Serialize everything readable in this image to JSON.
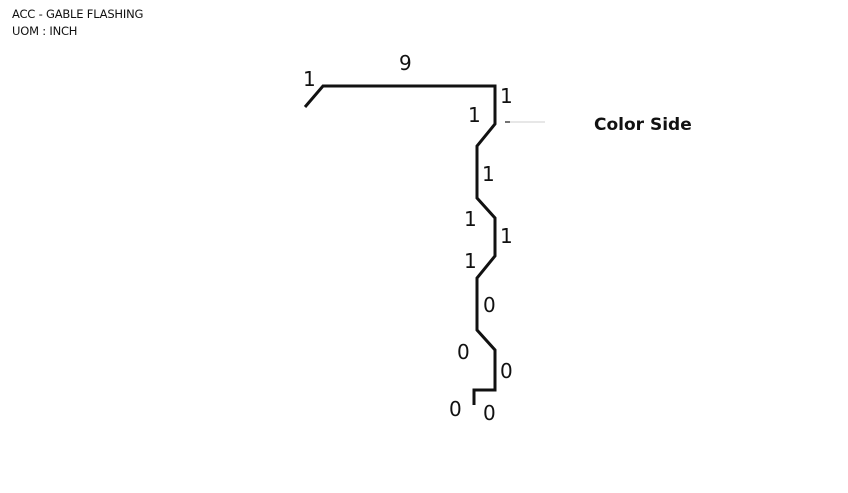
{
  "header": {
    "title": "ACC - GABLE FLASHING",
    "uom": "UOM : INCH"
  },
  "diagram": {
    "color_side_label": "Color Side",
    "segment_labels": {
      "hook": "1",
      "top": "9",
      "drop_right": "1",
      "jog_left": "1",
      "vert_1": "1",
      "jog_right_1": "1",
      "vert_right": "1",
      "jog_left_2": "1",
      "vert_2": "0",
      "jog_right_2": "0",
      "vert_right_2": "0",
      "bottom_left": "0",
      "bottom_return": "0"
    }
  }
}
